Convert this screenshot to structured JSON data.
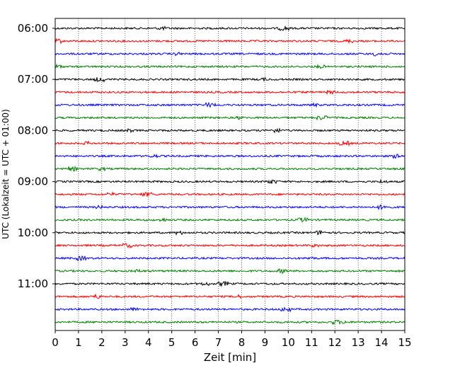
{
  "chart_data": {
    "type": "line",
    "xlabel": "Zeit  [min]",
    "ylabel": "UTC (Lokalzeit = UTC + 01:00)",
    "xlim": [
      0,
      15
    ],
    "x_ticks": [
      "0",
      "1",
      "2",
      "3",
      "4",
      "5",
      "6",
      "7",
      "8",
      "9",
      "10",
      "11",
      "12",
      "13",
      "14",
      "15"
    ],
    "y_tick_labels": [
      "06:00",
      "07:00",
      "08:00",
      "09:00",
      "10:00",
      "11:00"
    ],
    "trace_colors": [
      "#000000",
      "#ff0000",
      "#0000ff",
      "#008000"
    ],
    "traces_per_hour": 4,
    "trace_start_times": [
      "06:00",
      "06:15",
      "06:30",
      "06:45",
      "07:00",
      "07:15",
      "07:30",
      "07:45",
      "08:00",
      "08:15",
      "08:30",
      "08:45",
      "09:00",
      "09:15",
      "09:30",
      "09:45",
      "10:00",
      "10:15",
      "10:30",
      "10:45",
      "11:00",
      "11:15",
      "11:30",
      "11:45"
    ],
    "grid": "vertical dotted at each minute"
  }
}
